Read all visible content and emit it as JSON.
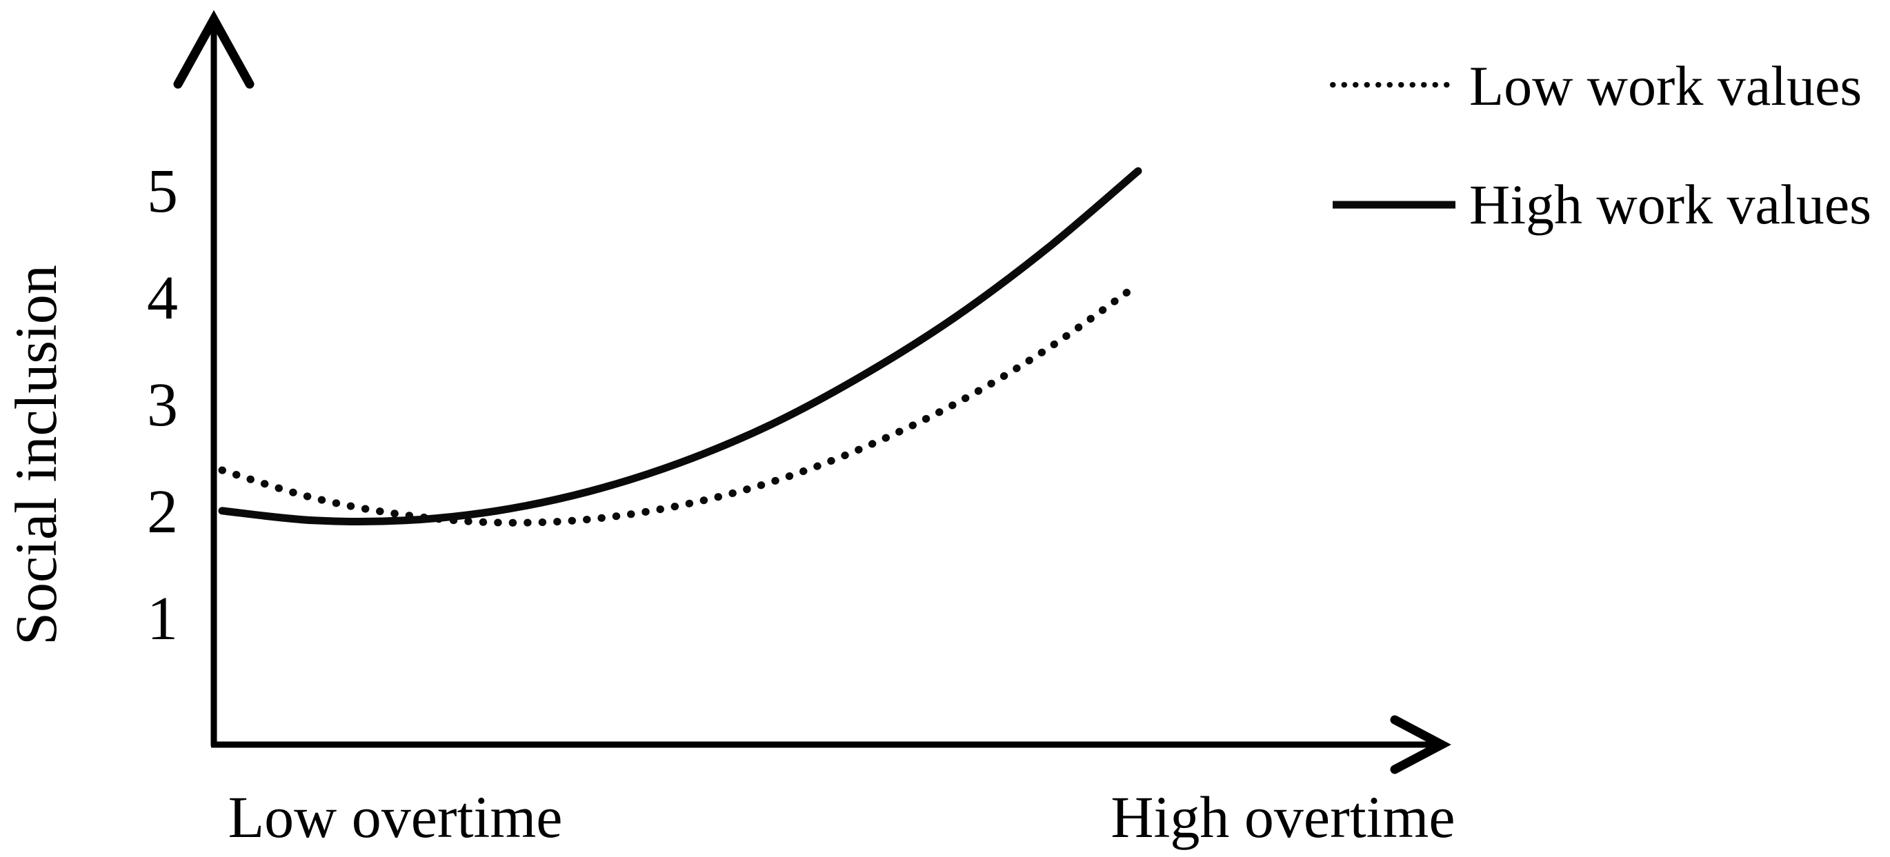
{
  "figure": {
    "y_axis_title": "Social inclusion",
    "y_ticks": [
      "5",
      "4",
      "3",
      "2",
      "1"
    ],
    "x_label_left": "Low overtime",
    "x_label_right": "High overtime",
    "legend": {
      "low_label": "Low work values",
      "high_label": "High work values"
    },
    "line_color": "#0a0a0a",
    "background_color": "#ffffff"
  },
  "chart_data": {
    "type": "line",
    "title": "",
    "xlabel": "Overtime (Low overtime to High overtime)",
    "ylabel": "Social inclusion",
    "x_categories": [
      "Low overtime",
      "High overtime"
    ],
    "yticks": [
      1,
      2,
      3,
      4,
      5
    ],
    "ylim": [
      1,
      5
    ],
    "x_range_normalized": [
      0,
      1
    ],
    "grid": false,
    "legend_position": "top-right",
    "series": [
      {
        "name": "Low work values",
        "line_style": "dotted",
        "x": [
          0,
          0.1,
          0.2,
          0.3,
          0.4,
          0.5,
          0.6,
          0.7,
          0.8,
          0.9,
          1.0
        ],
        "values": [
          2.41,
          2.15,
          1.99,
          1.92,
          1.95,
          2.08,
          2.3,
          2.62,
          3.03,
          3.54,
          4.15
        ]
      },
      {
        "name": "High work values",
        "line_style": "solid",
        "x": [
          0,
          0.1,
          0.2,
          0.3,
          0.4,
          0.5,
          0.6,
          0.7,
          0.8,
          0.9,
          1.0
        ],
        "values": [
          2.03,
          1.94,
          1.94,
          2.03,
          2.21,
          2.48,
          2.84,
          3.3,
          3.84,
          4.48,
          5.21
        ]
      }
    ]
  }
}
